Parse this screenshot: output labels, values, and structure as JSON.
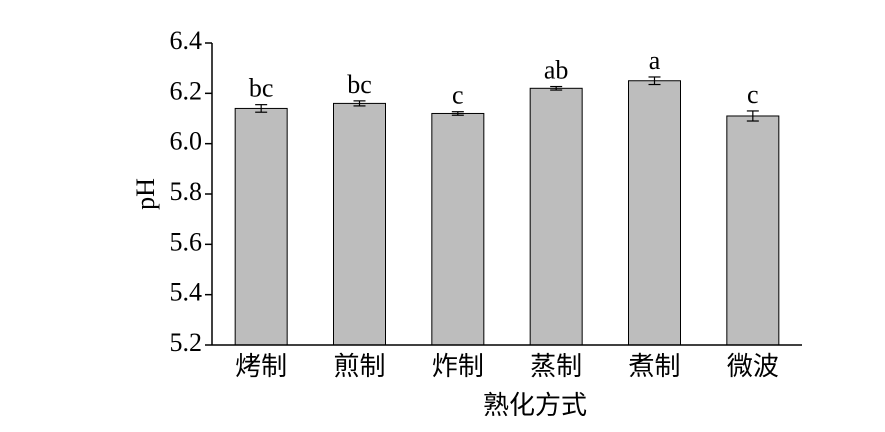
{
  "chart_data": {
    "type": "bar",
    "x_label": "熟化方式",
    "y_label": "pH",
    "categories": [
      "烤制",
      "煎制",
      "炸制",
      "蒸制",
      "煮制",
      "微波"
    ],
    "values": [
      6.14,
      6.16,
      6.12,
      6.22,
      6.25,
      6.11
    ],
    "errors": [
      0.015,
      0.01,
      0.007,
      0.007,
      0.015,
      0.02
    ],
    "annotations": [
      "bc",
      "bc",
      "c",
      "ab",
      "a",
      "c"
    ],
    "color": "#bdbdbd",
    "ylim": [
      5.2,
      6.4
    ],
    "yticks": [
      5.2,
      5.4,
      5.6,
      5.8,
      {
        "value": 6,
        "label": "6.0"
      },
      6.2,
      6.4
    ],
    "grid": false
  }
}
